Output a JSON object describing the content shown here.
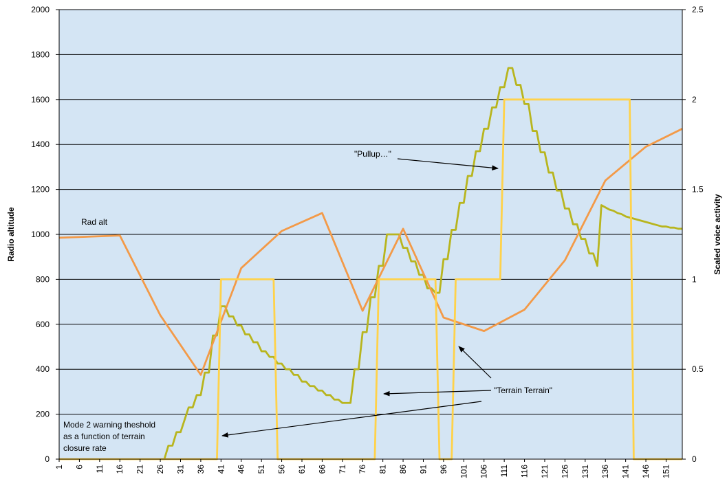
{
  "chart_data": {
    "type": "line",
    "ylabel": "Radio altitude",
    "y2label": "Scaled voice activity",
    "xlim": [
      1,
      155
    ],
    "xticks": [
      1,
      6,
      11,
      16,
      21,
      26,
      31,
      36,
      41,
      46,
      51,
      56,
      61,
      66,
      71,
      76,
      81,
      86,
      91,
      96,
      101,
      106,
      111,
      116,
      121,
      126,
      131,
      136,
      141,
      146,
      151
    ],
    "ylim": [
      0,
      2000
    ],
    "yticks": [
      0,
      200,
      400,
      600,
      800,
      1000,
      1200,
      1400,
      1600,
      1800,
      2000
    ],
    "y2lim": [
      0,
      2.5
    ],
    "y2ticks": [
      0,
      0.5,
      1,
      1.5,
      2,
      2.5
    ],
    "grid": true,
    "background": "#d4e5f4",
    "annotations": [
      "Rad alt",
      "\"Pullup…\"",
      "\"Terrain Terrain\"",
      [
        "Mode 2 warning theshold",
        "as a function of terrain",
        "closure rate"
      ]
    ],
    "series": [
      {
        "color": "#b8b51e",
        "axis": "y",
        "x": [
          26,
          27,
          28,
          29,
          30,
          31,
          32,
          33,
          34,
          35,
          36,
          37,
          38,
          39,
          40,
          41,
          42,
          43,
          44,
          45,
          46,
          47,
          48,
          49,
          50,
          51,
          52,
          53,
          54,
          55,
          56,
          57,
          58,
          59,
          60,
          61,
          62,
          63,
          64,
          65,
          66,
          67,
          68,
          69,
          70,
          71,
          72,
          73,
          74,
          75,
          76,
          77,
          78,
          79,
          80,
          81,
          82,
          83,
          84,
          85,
          86,
          87,
          88,
          89,
          90,
          91,
          92,
          93,
          94,
          95,
          96,
          97,
          98,
          99,
          100,
          101,
          102,
          103,
          104,
          105,
          106,
          107,
          108,
          109,
          110,
          111,
          112,
          113,
          114,
          115,
          116,
          117,
          118,
          119,
          120,
          121,
          122,
          123,
          124,
          125,
          126,
          127,
          128,
          129,
          130,
          131,
          132,
          133,
          134,
          135,
          136,
          137,
          138,
          139,
          140,
          141,
          142,
          143,
          144,
          145,
          146,
          147,
          148,
          149,
          150,
          151,
          152,
          153,
          154,
          155
        ],
        "values": [
          0,
          0,
          60,
          60,
          120,
          120,
          175,
          230,
          230,
          285,
          285,
          385,
          385,
          550,
          550,
          680,
          680,
          635,
          635,
          595,
          595,
          555,
          555,
          520,
          520,
          480,
          480,
          455,
          455,
          425,
          425,
          400,
          400,
          375,
          375,
          345,
          345,
          325,
          325,
          305,
          305,
          285,
          285,
          265,
          265,
          250,
          250,
          250,
          400,
          400,
          565,
          565,
          720,
          720,
          860,
          860,
          1000,
          1000,
          1000,
          1000,
          940,
          940,
          880,
          880,
          820,
          820,
          760,
          760,
          740,
          740,
          890,
          890,
          1020,
          1020,
          1140,
          1140,
          1260,
          1260,
          1370,
          1370,
          1470,
          1470,
          1565,
          1565,
          1655,
          1655,
          1740,
          1740,
          1665,
          1665,
          1580,
          1580,
          1460,
          1460,
          1365,
          1365,
          1275,
          1275,
          1195,
          1195,
          1115,
          1115,
          1045,
          1045,
          980,
          980,
          915,
          915,
          860,
          1130,
          1120,
          1110,
          1105,
          1095,
          1090,
          1080,
          1075,
          1070,
          1065,
          1060,
          1055,
          1050,
          1045,
          1040,
          1035,
          1035,
          1030,
          1030,
          1025,
          1025
        ]
      },
      {
        "color": "#f39a48",
        "axis": "y",
        "x": [
          1,
          16,
          26,
          36,
          46,
          56,
          66,
          76,
          86,
          96,
          106,
          116,
          126,
          136,
          146,
          155
        ],
        "values": [
          985,
          995,
          640,
          375,
          850,
          1015,
          1095,
          660,
          1025,
          630,
          570,
          665,
          885,
          1240,
          1390,
          1470
        ]
      },
      {
        "color": "#ffd24a",
        "axis": "y2",
        "x": [
          1,
          40,
          41,
          54,
          55,
          79,
          80,
          94,
          95,
          98,
          99,
          110,
          111,
          142,
          143,
          155
        ],
        "values": [
          0,
          0,
          1,
          1,
          0,
          0,
          1,
          1,
          0,
          0,
          1,
          1,
          2,
          2,
          0,
          0
        ]
      }
    ]
  }
}
